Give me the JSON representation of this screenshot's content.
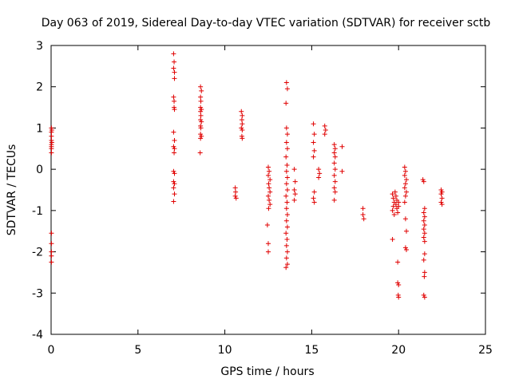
{
  "chart_data": {
    "type": "scatter",
    "title": "Day 063 of 2019, Sidereal Day-to-day VTEC variation (SDTVAR) for receiver sctb",
    "xlabel": "GPS time / hours",
    "ylabel": "SDTVAR / TECUs",
    "xlim": [
      0,
      25
    ],
    "ylim": [
      -4,
      3
    ],
    "xticks": [
      0,
      5,
      10,
      15,
      20,
      25
    ],
    "xtick_labels": [
      "0",
      "5",
      "10",
      "15",
      "20",
      "25"
    ],
    "yticks": [
      -4,
      -3,
      -2,
      -1,
      0,
      1,
      2,
      3
    ],
    "ytick_labels": [
      "-4",
      "-3",
      "-2",
      "-1",
      "0",
      "1",
      "2",
      "3"
    ],
    "marker": "+",
    "color": "#e00000",
    "grid": false,
    "series": [
      {
        "name": "SDTVAR",
        "points": [
          [
            0.02,
            1.0
          ],
          [
            0.02,
            0.9
          ],
          [
            0.02,
            0.8
          ],
          [
            0.02,
            0.7
          ],
          [
            0.02,
            0.6
          ],
          [
            0.02,
            0.55
          ],
          [
            0.02,
            0.5
          ],
          [
            0.02,
            0.4
          ],
          [
            0.04,
            0.95
          ],
          [
            0.04,
            0.65
          ],
          [
            0.02,
            -1.55
          ],
          [
            0.02,
            -1.8
          ],
          [
            0.02,
            -2.0
          ],
          [
            0.02,
            -2.1
          ],
          [
            0.02,
            -2.25
          ],
          [
            7.05,
            2.8
          ],
          [
            7.08,
            2.6
          ],
          [
            7.05,
            2.45
          ],
          [
            7.1,
            2.35
          ],
          [
            7.1,
            2.2
          ],
          [
            7.05,
            1.75
          ],
          [
            7.08,
            1.65
          ],
          [
            7.08,
            1.5
          ],
          [
            7.1,
            1.45
          ],
          [
            7.05,
            0.9
          ],
          [
            7.1,
            0.7
          ],
          [
            7.05,
            0.55
          ],
          [
            7.1,
            0.5
          ],
          [
            7.08,
            0.4
          ],
          [
            7.05,
            -0.05
          ],
          [
            7.1,
            -0.1
          ],
          [
            7.05,
            -0.3
          ],
          [
            7.1,
            -0.35
          ],
          [
            7.05,
            -0.45
          ],
          [
            7.1,
            -0.6
          ],
          [
            7.05,
            -0.78
          ],
          [
            8.6,
            2.0
          ],
          [
            8.65,
            1.9
          ],
          [
            8.6,
            1.75
          ],
          [
            8.62,
            1.65
          ],
          [
            8.6,
            1.5
          ],
          [
            8.65,
            1.45
          ],
          [
            8.6,
            1.4
          ],
          [
            8.62,
            1.3
          ],
          [
            8.6,
            1.2
          ],
          [
            8.65,
            1.15
          ],
          [
            8.6,
            1.05
          ],
          [
            8.62,
            1.0
          ],
          [
            8.6,
            0.85
          ],
          [
            8.65,
            0.8
          ],
          [
            8.6,
            0.75
          ],
          [
            8.58,
            0.4
          ],
          [
            10.6,
            -0.45
          ],
          [
            10.62,
            -0.55
          ],
          [
            10.6,
            -0.65
          ],
          [
            10.65,
            -0.7
          ],
          [
            10.95,
            1.4
          ],
          [
            11.0,
            1.3
          ],
          [
            10.98,
            1.2
          ],
          [
            11.0,
            1.1
          ],
          [
            10.95,
            1.0
          ],
          [
            11.0,
            0.95
          ],
          [
            10.98,
            0.8
          ],
          [
            11.0,
            0.75
          ],
          [
            12.5,
            0.05
          ],
          [
            12.55,
            -0.05
          ],
          [
            12.5,
            -0.15
          ],
          [
            12.6,
            -0.25
          ],
          [
            12.52,
            -0.35
          ],
          [
            12.55,
            -0.45
          ],
          [
            12.6,
            -0.55
          ],
          [
            12.5,
            -0.65
          ],
          [
            12.55,
            -0.75
          ],
          [
            12.6,
            -0.85
          ],
          [
            12.52,
            -0.95
          ],
          [
            12.45,
            -1.35
          ],
          [
            12.5,
            -1.8
          ],
          [
            12.5,
            -2.0
          ],
          [
            13.55,
            2.1
          ],
          [
            13.6,
            1.95
          ],
          [
            13.52,
            1.6
          ],
          [
            13.55,
            1.0
          ],
          [
            13.6,
            0.85
          ],
          [
            13.55,
            0.65
          ],
          [
            13.6,
            0.5
          ],
          [
            13.52,
            0.3
          ],
          [
            13.58,
            0.1
          ],
          [
            13.55,
            -0.05
          ],
          [
            13.6,
            -0.2
          ],
          [
            13.55,
            -0.35
          ],
          [
            13.6,
            -0.5
          ],
          [
            13.52,
            -0.65
          ],
          [
            13.58,
            -0.8
          ],
          [
            13.55,
            -0.95
          ],
          [
            13.6,
            -1.1
          ],
          [
            13.55,
            -1.25
          ],
          [
            13.6,
            -1.4
          ],
          [
            13.52,
            -1.55
          ],
          [
            13.58,
            -1.7
          ],
          [
            13.55,
            -1.85
          ],
          [
            13.6,
            -2.0
          ],
          [
            13.55,
            -2.15
          ],
          [
            13.6,
            -2.3
          ],
          [
            13.52,
            -2.38
          ],
          [
            14.0,
            0.0
          ],
          [
            14.05,
            -0.3
          ],
          [
            14.0,
            -0.5
          ],
          [
            14.05,
            -0.6
          ],
          [
            14.0,
            -0.75
          ],
          [
            15.1,
            1.1
          ],
          [
            15.15,
            0.85
          ],
          [
            15.1,
            0.65
          ],
          [
            15.15,
            0.45
          ],
          [
            15.1,
            0.3
          ],
          [
            15.15,
            -0.55
          ],
          [
            15.1,
            -0.7
          ],
          [
            15.15,
            -0.8
          ],
          [
            15.4,
            0.0
          ],
          [
            15.45,
            -0.1
          ],
          [
            15.4,
            -0.2
          ],
          [
            15.75,
            1.05
          ],
          [
            15.8,
            0.95
          ],
          [
            15.75,
            0.85
          ],
          [
            16.3,
            0.6
          ],
          [
            16.35,
            0.5
          ],
          [
            16.3,
            0.4
          ],
          [
            16.35,
            0.3
          ],
          [
            16.3,
            0.15
          ],
          [
            16.35,
            0.0
          ],
          [
            16.3,
            -0.15
          ],
          [
            16.35,
            -0.3
          ],
          [
            16.3,
            -0.45
          ],
          [
            16.35,
            -0.55
          ],
          [
            16.3,
            -0.75
          ],
          [
            16.75,
            0.55
          ],
          [
            16.75,
            -0.05
          ],
          [
            17.95,
            -0.95
          ],
          [
            17.95,
            -1.1
          ],
          [
            18.0,
            -1.2
          ],
          [
            19.65,
            -0.6
          ],
          [
            19.7,
            -0.7
          ],
          [
            19.75,
            -0.8
          ],
          [
            19.7,
            -0.9
          ],
          [
            19.65,
            -1.0
          ],
          [
            19.75,
            -1.1
          ],
          [
            19.8,
            -0.55
          ],
          [
            19.85,
            -0.65
          ],
          [
            19.9,
            -0.75
          ],
          [
            19.85,
            -0.85
          ],
          [
            19.9,
            -0.95
          ],
          [
            19.95,
            -1.05
          ],
          [
            20.0,
            -0.8
          ],
          [
            20.0,
            -0.9
          ],
          [
            19.65,
            -1.7
          ],
          [
            19.95,
            -2.25
          ],
          [
            19.95,
            -2.75
          ],
          [
            20.0,
            -2.8
          ],
          [
            19.98,
            -3.05
          ],
          [
            20.0,
            -3.1
          ],
          [
            20.35,
            0.05
          ],
          [
            20.4,
            -0.05
          ],
          [
            20.35,
            -0.15
          ],
          [
            20.45,
            -0.25
          ],
          [
            20.4,
            -0.35
          ],
          [
            20.35,
            -0.45
          ],
          [
            20.45,
            -0.55
          ],
          [
            20.4,
            -0.65
          ],
          [
            20.35,
            -0.8
          ],
          [
            20.4,
            -1.2
          ],
          [
            20.45,
            -1.5
          ],
          [
            20.4,
            -1.9
          ],
          [
            20.45,
            -1.95
          ],
          [
            21.4,
            -0.25
          ],
          [
            21.45,
            -0.3
          ],
          [
            21.5,
            -0.95
          ],
          [
            21.45,
            -1.05
          ],
          [
            21.5,
            -1.15
          ],
          [
            21.45,
            -1.25
          ],
          [
            21.5,
            -1.35
          ],
          [
            21.45,
            -1.45
          ],
          [
            21.5,
            -1.55
          ],
          [
            21.45,
            -1.65
          ],
          [
            21.5,
            -1.75
          ],
          [
            21.5,
            -2.05
          ],
          [
            21.45,
            -2.2
          ],
          [
            21.5,
            -2.5
          ],
          [
            21.48,
            -2.6
          ],
          [
            21.45,
            -3.05
          ],
          [
            21.5,
            -3.1
          ],
          [
            22.45,
            -0.5
          ],
          [
            22.5,
            -0.55
          ],
          [
            22.45,
            -0.6
          ],
          [
            22.5,
            -0.7
          ],
          [
            22.45,
            -0.8
          ],
          [
            22.5,
            -0.85
          ]
        ]
      }
    ]
  }
}
